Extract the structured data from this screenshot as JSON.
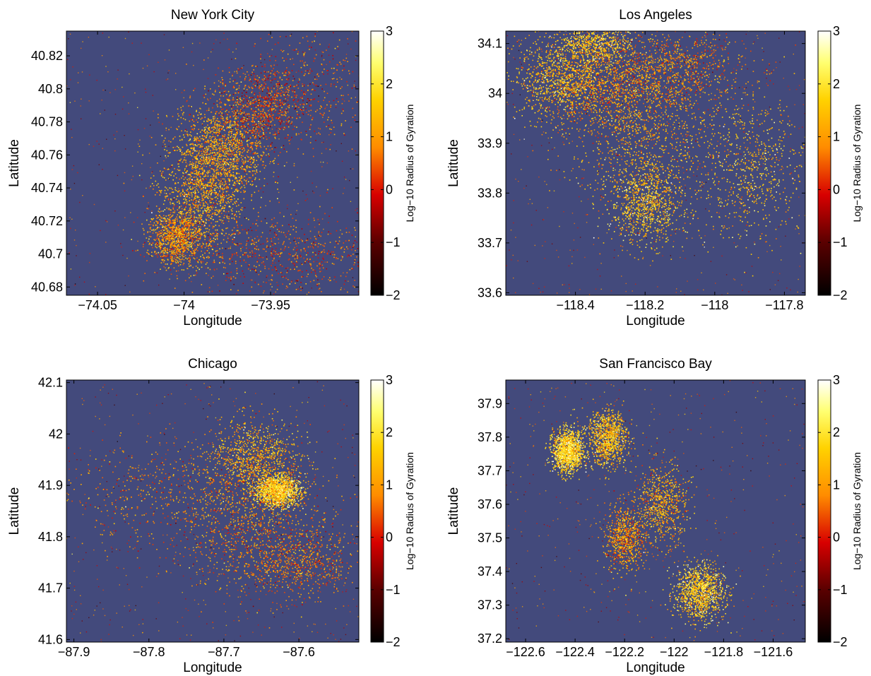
{
  "figure": {
    "background": "#ffffff",
    "plot_bg": "#434a7c",
    "colormap": "hot",
    "colormap_stops": [
      "#000000",
      "#d80000",
      "#ff8c00",
      "#ffd200",
      "#ffff70",
      "#ffffff"
    ]
  },
  "chart_data": [
    {
      "type": "heatmap",
      "title": "New York City",
      "xlabel": "Longitude",
      "ylabel": "Latitude",
      "xlim": [
        -74.068,
        -73.899
      ],
      "ylim": [
        40.675,
        40.835
      ],
      "xticks": [
        -74.05,
        -74,
        -73.95
      ],
      "xtick_labels": [
        "−74.05",
        "−74",
        "−73.95"
      ],
      "yticks": [
        40.68,
        40.7,
        40.72,
        40.74,
        40.76,
        40.78,
        40.8,
        40.82
      ],
      "ytick_labels": [
        "40.68",
        "40.7",
        "40.72",
        "40.74",
        "40.76",
        "40.78",
        "40.8",
        "40.82"
      ],
      "colorbar": {
        "label": "Log−10 Radius of Gyration",
        "range": [
          -2,
          3
        ],
        "ticks": [
          -2,
          -1,
          0,
          1,
          2,
          3
        ],
        "tick_labels": [
          "−2",
          "−1",
          "0",
          "1",
          "2",
          "3"
        ]
      },
      "hotspots": [
        {
          "x": -73.99,
          "y": 40.74,
          "sx": 0.012,
          "sy": 0.02,
          "density": 1.0,
          "level": 1.2
        },
        {
          "x": -73.975,
          "y": 40.765,
          "sx": 0.012,
          "sy": 0.015,
          "density": 0.8,
          "level": 1.1
        },
        {
          "x": -73.955,
          "y": 40.79,
          "sx": 0.013,
          "sy": 0.012,
          "density": 0.5,
          "level": 0.3
        },
        {
          "x": -74.005,
          "y": 40.71,
          "sx": 0.008,
          "sy": 0.008,
          "density": 0.7,
          "level": 1.0
        },
        {
          "x": -73.94,
          "y": 40.7,
          "sx": 0.03,
          "sy": 0.012,
          "density": 0.5,
          "level": 0.5
        },
        {
          "x": -73.93,
          "y": 40.8,
          "sx": 0.02,
          "sy": 0.02,
          "density": 0.3,
          "level": 0.6
        }
      ]
    },
    {
      "type": "heatmap",
      "title": "Los Angeles",
      "xlabel": "Longitude",
      "ylabel": "Latitude",
      "xlim": [
        -118.6,
        -117.74
      ],
      "ylim": [
        33.595,
        34.125
      ],
      "xticks": [
        -118.4,
        -118.2,
        -118,
        -117.8
      ],
      "xtick_labels": [
        "−118.4",
        "−118.2",
        "−118",
        "−117.8"
      ],
      "yticks": [
        33.6,
        33.7,
        33.8,
        33.9,
        34,
        34.1
      ],
      "ytick_labels": [
        "33.6",
        "33.7",
        "33.8",
        "33.9",
        "34",
        "34.1"
      ],
      "colorbar": {
        "label": "Log−10 Radius of Gyration",
        "range": [
          -2,
          3
        ],
        "ticks": [
          -2,
          -1,
          0,
          1,
          2,
          3
        ],
        "tick_labels": [
          "−2",
          "−1",
          "0",
          "1",
          "2",
          "3"
        ]
      },
      "hotspots": [
        {
          "x": -118.3,
          "y": 34.02,
          "sx": 0.1,
          "sy": 0.05,
          "density": 1.0,
          "level": 1.0
        },
        {
          "x": -118.2,
          "y": 33.9,
          "sx": 0.1,
          "sy": 0.08,
          "density": 0.7,
          "level": 1.2
        },
        {
          "x": -118.45,
          "y": 34.03,
          "sx": 0.06,
          "sy": 0.04,
          "density": 0.6,
          "level": 1.5
        },
        {
          "x": -118.2,
          "y": 33.78,
          "sx": 0.05,
          "sy": 0.04,
          "density": 0.6,
          "level": 1.6
        },
        {
          "x": -117.9,
          "y": 33.85,
          "sx": 0.08,
          "sy": 0.07,
          "density": 0.5,
          "level": 1.5
        },
        {
          "x": -118.1,
          "y": 34.05,
          "sx": 0.1,
          "sy": 0.04,
          "density": 0.5,
          "level": 0.8
        },
        {
          "x": -118.35,
          "y": 34.1,
          "sx": 0.05,
          "sy": 0.02,
          "density": 0.4,
          "level": 1.7
        }
      ]
    },
    {
      "type": "heatmap",
      "title": "Chicago",
      "xlabel": "Longitude",
      "ylabel": "Latitude",
      "xlim": [
        -87.91,
        -87.52
      ],
      "ylim": [
        41.595,
        42.105
      ],
      "xticks": [
        -87.9,
        -87.8,
        -87.7,
        -87.6
      ],
      "xtick_labels": [
        "−87.9",
        "−87.8",
        "−87.7",
        "−87.6"
      ],
      "yticks": [
        41.6,
        41.7,
        41.8,
        41.9,
        42,
        42.1
      ],
      "ytick_labels": [
        "41.6",
        "41.7",
        "41.8",
        "41.9",
        "42",
        "42.1"
      ],
      "colorbar": {
        "label": "Log−10 Radius of Gyration",
        "range": [
          -2,
          3
        ],
        "ticks": [
          -2,
          -1,
          0,
          1,
          2,
          3
        ],
        "tick_labels": [
          "−2",
          "−1",
          "0",
          "1",
          "2",
          "3"
        ]
      },
      "hotspots": [
        {
          "x": -87.63,
          "y": 41.89,
          "sx": 0.015,
          "sy": 0.015,
          "density": 1.0,
          "level": 1.8
        },
        {
          "x": -87.66,
          "y": 41.95,
          "sx": 0.03,
          "sy": 0.04,
          "density": 0.7,
          "level": 1.3
        },
        {
          "x": -87.65,
          "y": 41.8,
          "sx": 0.05,
          "sy": 0.06,
          "density": 0.6,
          "level": 0.8
        },
        {
          "x": -87.75,
          "y": 41.88,
          "sx": 0.08,
          "sy": 0.05,
          "density": 0.5,
          "level": 0.8
        },
        {
          "x": -87.6,
          "y": 41.75,
          "sx": 0.04,
          "sy": 0.03,
          "density": 0.4,
          "level": 0.7
        }
      ]
    },
    {
      "type": "heatmap",
      "title": "San Francisco Bay",
      "xlabel": "Longitude",
      "ylabel": "Latitude",
      "xlim": [
        -122.68,
        -121.47
      ],
      "ylim": [
        37.19,
        37.97
      ],
      "xticks": [
        -122.6,
        -122.4,
        -122.2,
        -122,
        -121.8,
        -121.6
      ],
      "xtick_labels": [
        "−122.6",
        "−122.4",
        "−122.2",
        "−122",
        "−121.8",
        "−121.6"
      ],
      "yticks": [
        37.2,
        37.3,
        37.4,
        37.5,
        37.6,
        37.7,
        37.8,
        37.9
      ],
      "ytick_labels": [
        "37.2",
        "37.3",
        "37.4",
        "37.5",
        "37.6",
        "37.7",
        "37.8",
        "37.9"
      ],
      "colorbar": {
        "label": "Log−10 Radius of Gyration",
        "range": [
          -2,
          3
        ],
        "ticks": [
          -2,
          -1,
          0,
          1,
          2,
          3
        ],
        "tick_labels": [
          "−2",
          "−1",
          "0",
          "1",
          "2",
          "3"
        ]
      },
      "hotspots": [
        {
          "x": -122.43,
          "y": 37.76,
          "sx": 0.03,
          "sy": 0.03,
          "density": 1.0,
          "level": 1.8
        },
        {
          "x": -122.27,
          "y": 37.8,
          "sx": 0.04,
          "sy": 0.04,
          "density": 0.7,
          "level": 1.5
        },
        {
          "x": -121.9,
          "y": 37.34,
          "sx": 0.05,
          "sy": 0.04,
          "density": 0.8,
          "level": 1.7
        },
        {
          "x": -122.2,
          "y": 37.5,
          "sx": 0.04,
          "sy": 0.05,
          "density": 0.5,
          "level": 1.0
        },
        {
          "x": -122.05,
          "y": 37.6,
          "sx": 0.05,
          "sy": 0.06,
          "density": 0.5,
          "level": 1.2
        }
      ]
    }
  ]
}
